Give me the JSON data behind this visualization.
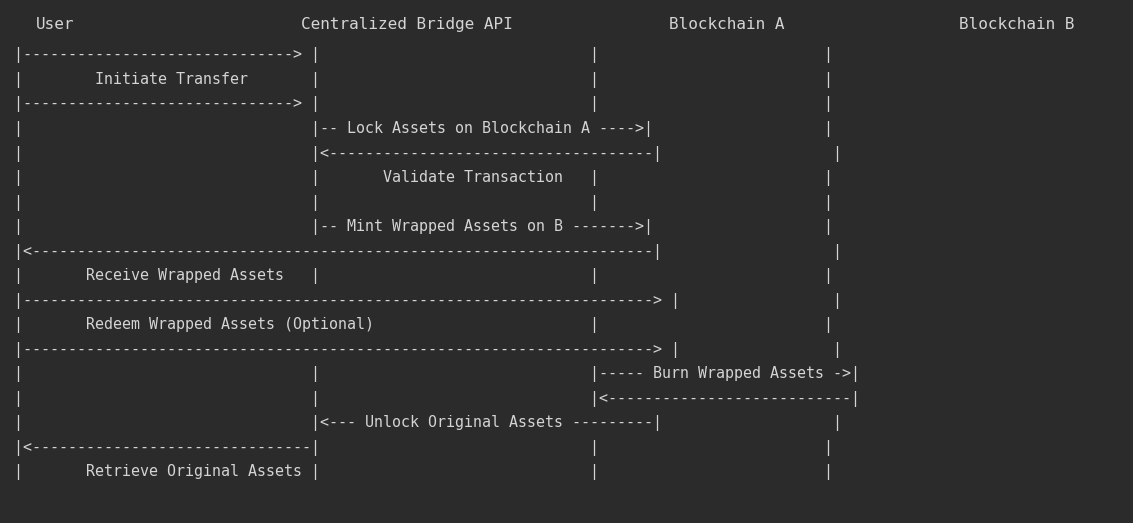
{
  "bg_color": "#2b2b2b",
  "text_color": "#d4d4d4",
  "font_family": "monospace",
  "fig_width": 11.33,
  "fig_height": 5.23,
  "font_size": 10.8,
  "header_font_size": 11.5,
  "actors": [
    {
      "name": "User",
      "col": 0
    },
    {
      "name": "Centralized Bridge API",
      "col": 28
    },
    {
      "name": "Blockchain A",
      "col": 59
    },
    {
      "name": "Blockchain B",
      "col": 84
    }
  ],
  "lines": [
    "|------------------------------> |                              |                    |",
    "|        Initiate Transfer       |                              |                    |",
    "|------------------------------> |                              |                    |",
    "|                                |-- Lock Assets on Blockchain A ---->|              |",
    "|                                |<------------------------------------|              |",
    "|                                |       Validate Transaction   |                    |",
    "|                                |                              |                    |",
    "|                                |-- Mint Wrapped Assets on B ------->|              |",
    "|<----------------------------------------------------------------------|              |",
    "|       Receive Wrapped Assets   |                              |                    |",
    "|----------------------------------------------------------------------> |            |",
    "|       Redeem Wrapped Assets (Optional)                        |                    |",
    "|----------------------------------------------------------------------> |            |",
    "|                                |                              |----- Burn Wrapped Assets ->|",
    "|                                |                              |<---------------------------|",
    "|                                |<--- Unlock Original Assets ---------|              |",
    "|<-------------------------------|                              |                    |",
    "|       Retrieve Original Assets |                              |                    |"
  ]
}
